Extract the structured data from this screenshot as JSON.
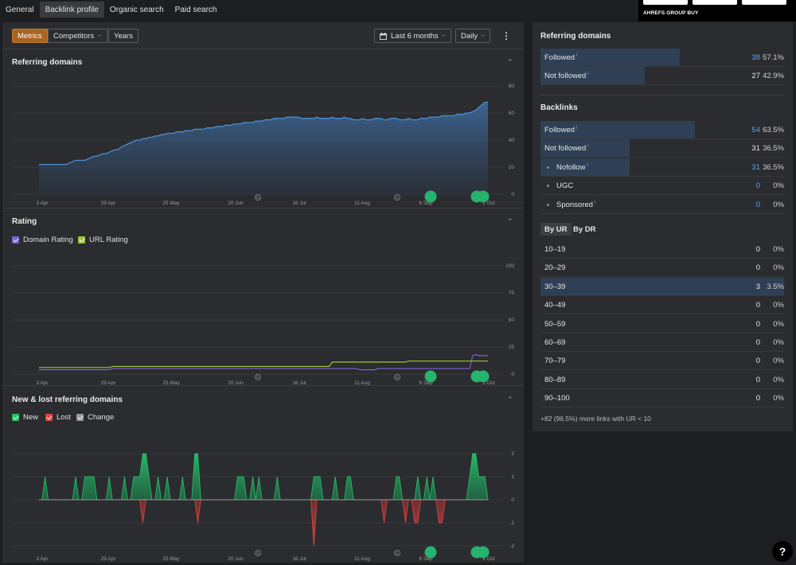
{
  "tabs": [
    {
      "label": "General"
    },
    {
      "label": "Backlink profile"
    },
    {
      "label": "Organic search"
    },
    {
      "label": "Paid search"
    }
  ],
  "promo": {
    "brand": "AHREFS GROUP BUY"
  },
  "toolbar": {
    "metrics": "Metrics",
    "competitors": "Competitors",
    "years": "Years",
    "range": "Last 6 months",
    "interval": "Daily"
  },
  "sections": {
    "referring_domains": "Referring domains",
    "rating": "Rating",
    "new_lost": "New & lost referring domains"
  },
  "rating_legend": {
    "domain": "Domain Rating",
    "url": "URL Rating"
  },
  "newlost_legend": {
    "new": "New",
    "lost": "Lost",
    "change": "Change"
  },
  "colors": {
    "accent": "#a86421",
    "line_blue": "#4b8fd6",
    "domain_rating": "#7e62d1",
    "url_rating": "#9cc33d",
    "new": "#26c26b",
    "lost": "#e04444",
    "change": "#9a9a9a",
    "marker": "#26b36c"
  },
  "x_ticks": [
    "3 Apr",
    "29 Apr",
    "25 May",
    "20 Jun",
    "16 Jul",
    "11 Aug",
    "6 Sep",
    "2 Oct"
  ],
  "chart_data": [
    {
      "type": "area",
      "title": "Referring domains",
      "yticks": [
        "80",
        "60",
        "40",
        "20",
        "0"
      ],
      "ylim": [
        0,
        80
      ],
      "grid": true,
      "series": [
        {
          "values": [
            22,
            22,
            22,
            22,
            22,
            22,
            22,
            22,
            22,
            22,
            23,
            24,
            25,
            25,
            25,
            25,
            26,
            27,
            28,
            28,
            29,
            30,
            30,
            31,
            32,
            33,
            33,
            35,
            36,
            37,
            38,
            39,
            40,
            40,
            41,
            41,
            42,
            42,
            43,
            43,
            44,
            44,
            45,
            45,
            45,
            46,
            46,
            46,
            47,
            47,
            47,
            48,
            48,
            48,
            48,
            49,
            49,
            49,
            50,
            50,
            50,
            51,
            51,
            51,
            52,
            52,
            52,
            53,
            53,
            53,
            53,
            54,
            54,
            54,
            55,
            55,
            55,
            56,
            56,
            56,
            56,
            57,
            57,
            57,
            57,
            57,
            56,
            56,
            56,
            56,
            56,
            57,
            56,
            56,
            56,
            56,
            57,
            56,
            56,
            56,
            57,
            56,
            56,
            55,
            55,
            55,
            56,
            55,
            55,
            55,
            56,
            56,
            56,
            55,
            55,
            56,
            56,
            56,
            55,
            55,
            55,
            56,
            55,
            55,
            55,
            56,
            56,
            56,
            57,
            57,
            57,
            57,
            58,
            58,
            58,
            58,
            58,
            59,
            59,
            59,
            60,
            60,
            61,
            62,
            64,
            66,
            68,
            68
          ]
        }
      ]
    },
    {
      "type": "line",
      "title": "Rating",
      "yticks": [
        "100",
        "75",
        "50",
        "25",
        "0"
      ],
      "ylim": [
        0,
        100
      ],
      "grid": true,
      "series": [
        {
          "name": "Domain Rating",
          "values": [
            4,
            4,
            4,
            4,
            4,
            4,
            4,
            4,
            4,
            4,
            4,
            4,
            4,
            4,
            4,
            4,
            4,
            4,
            4,
            4,
            4,
            4,
            4,
            4,
            5,
            5,
            5,
            5,
            5,
            5,
            5,
            5,
            5,
            5,
            5,
            5,
            5,
            5,
            5,
            5,
            5,
            5,
            5,
            5,
            5,
            5,
            5,
            5,
            5,
            5,
            5,
            5,
            5,
            5,
            5,
            5,
            5,
            5,
            5,
            5,
            5,
            5,
            5,
            5,
            5,
            5,
            5,
            5,
            5,
            5,
            5,
            5,
            5,
            5,
            5,
            5,
            5,
            5,
            5,
            5,
            5,
            5,
            5,
            5,
            5,
            5,
            5,
            5,
            5,
            5,
            5,
            5,
            5,
            5,
            5,
            5,
            5,
            5,
            5,
            5,
            5,
            5,
            5,
            5,
            5,
            4,
            4,
            4,
            4,
            4,
            4,
            5,
            5,
            5,
            5,
            5,
            5,
            5,
            5,
            5,
            5,
            5,
            5,
            5,
            5,
            5,
            5,
            5,
            5,
            5,
            5,
            5,
            5,
            5,
            5,
            5,
            5,
            5,
            5,
            5,
            5,
            5,
            17,
            18,
            17,
            17,
            17,
            17
          ]
        },
        {
          "name": "URL Rating",
          "values": [
            6,
            6,
            6,
            6,
            6,
            6,
            6,
            6,
            6,
            6,
            6,
            6,
            6,
            6,
            6,
            6,
            6,
            6,
            6,
            6,
            6,
            6,
            6,
            6,
            7,
            7,
            7,
            7,
            7,
            7,
            7,
            7,
            7,
            7,
            7,
            7,
            7,
            7,
            7,
            7,
            7,
            7,
            7,
            7,
            7,
            7,
            7,
            7,
            7,
            7,
            7,
            7,
            7,
            7,
            7,
            7,
            7,
            7,
            7,
            7,
            7,
            7,
            7,
            7,
            7,
            7,
            7,
            7,
            7,
            7,
            7,
            7,
            7,
            7,
            7,
            7,
            7,
            7,
            7,
            7,
            7,
            7,
            7,
            7,
            7,
            7,
            7,
            7,
            7,
            7,
            7,
            7,
            7,
            7,
            7,
            7,
            11,
            11,
            11,
            11,
            11,
            11,
            11,
            11,
            11,
            11,
            11,
            11,
            11,
            11,
            11,
            11,
            11,
            11,
            11,
            11,
            11,
            11,
            11,
            11,
            11,
            12,
            12,
            12,
            12,
            12,
            12,
            12,
            12,
            12,
            12,
            12,
            12,
            12,
            12,
            12,
            12,
            12,
            12,
            12,
            12,
            12,
            12,
            12,
            12,
            12,
            12,
            12
          ]
        }
      ]
    },
    {
      "type": "line",
      "title": "New & lost referring domains",
      "yticks": [
        "2",
        "1",
        "0",
        "-1",
        "-2"
      ],
      "ylim": [
        -2,
        2
      ],
      "grid": true,
      "series": [
        {
          "name": "New",
          "values": [
            0,
            0,
            1,
            0,
            0,
            0,
            0,
            0,
            0,
            0,
            0,
            0,
            1,
            0,
            0,
            1,
            1,
            1,
            1,
            0,
            0,
            0,
            0,
            1,
            0,
            0,
            0,
            0,
            1,
            0,
            0,
            1,
            1,
            1,
            2,
            2,
            1,
            0,
            0,
            1,
            0,
            0,
            1,
            0,
            0,
            0,
            0,
            1,
            0,
            0,
            0,
            2,
            2,
            0,
            0,
            0,
            0,
            0,
            0,
            0,
            0,
            0,
            0,
            0,
            0,
            1,
            1,
            1,
            0,
            0,
            1,
            0,
            1,
            0,
            0,
            0,
            0,
            0,
            1,
            0,
            0,
            0,
            0,
            0,
            0,
            0,
            0,
            0,
            0,
            0,
            1,
            1,
            1,
            0,
            0,
            0,
            0,
            1,
            0,
            0,
            0,
            1,
            1,
            0,
            0,
            0,
            0,
            0,
            0,
            0,
            0,
            0,
            0,
            0,
            0,
            0,
            0,
            1,
            1,
            0,
            0,
            0,
            0,
            0,
            1,
            0,
            0,
            1,
            0,
            1,
            0,
            0,
            0,
            0,
            0,
            0,
            0,
            0,
            0,
            0,
            0,
            1,
            2,
            2,
            1,
            1,
            1,
            0
          ]
        },
        {
          "name": "Lost",
          "values": [
            0,
            0,
            0,
            0,
            0,
            0,
            0,
            0,
            0,
            0,
            0,
            0,
            0,
            0,
            0,
            0,
            0,
            0,
            0,
            0,
            0,
            0,
            0,
            0,
            0,
            0,
            0,
            0,
            0,
            0,
            0,
            0,
            0,
            0,
            -1,
            0,
            0,
            0,
            0,
            0,
            0,
            0,
            0,
            0,
            0,
            0,
            0,
            0,
            0,
            0,
            0,
            0,
            -1,
            0,
            0,
            0,
            0,
            0,
            0,
            0,
            0,
            0,
            0,
            0,
            0,
            0,
            0,
            0,
            0,
            0,
            0,
            0,
            0,
            0,
            0,
            0,
            0,
            0,
            0,
            0,
            0,
            0,
            0,
            0,
            0,
            0,
            0,
            0,
            0,
            0,
            -2,
            0,
            0,
            0,
            0,
            0,
            0,
            0,
            0,
            0,
            0,
            0,
            0,
            0,
            0,
            0,
            0,
            0,
            0,
            0,
            0,
            0,
            0,
            -1,
            0,
            0,
            0,
            0,
            0,
            0,
            -1,
            0,
            0,
            -1,
            -1,
            0,
            0,
            0,
            0,
            0,
            0,
            -1,
            -1,
            0,
            0,
            0,
            0,
            0,
            0,
            0,
            0,
            0,
            0,
            0,
            0,
            0,
            0,
            0
          ]
        }
      ]
    }
  ],
  "right": {
    "referring_domains_title": "Referring domains",
    "rd_rows": [
      {
        "label": "Followed",
        "value": "38",
        "pct": "57.1%",
        "link": true,
        "bar": 57.1
      },
      {
        "label": "Not followed",
        "value": "27",
        "pct": "42.9%",
        "link": false,
        "bar": 42.9
      }
    ],
    "backlinks_title": "Backlinks",
    "bl_rows": [
      {
        "label": "Followed",
        "value": "54",
        "pct": "63.5%",
        "link": true,
        "bar": 63.5,
        "sub": false,
        "info": true
      },
      {
        "label": "Not followed",
        "value": "31",
        "pct": "36.5%",
        "link": false,
        "bar": 36.5,
        "sub": false,
        "info": true
      },
      {
        "label": "Nofollow",
        "value": "31",
        "pct": "36.5%",
        "link": true,
        "bar": 36.5,
        "sub": true,
        "info": true
      },
      {
        "label": "UGC",
        "value": "0",
        "pct": "0%",
        "link": true,
        "bar": 0,
        "sub": true,
        "info": false
      },
      {
        "label": "Sponsored",
        "value": "0",
        "pct": "0%",
        "link": true,
        "bar": 0,
        "sub": true,
        "info": true
      }
    ],
    "by_ur": "By UR",
    "by_dr": "By DR",
    "ur_rows": [
      {
        "label": "10–19",
        "value": "0",
        "pct": "0%",
        "bar": 0
      },
      {
        "label": "20–29",
        "value": "0",
        "pct": "0%",
        "bar": 0
      },
      {
        "label": "30–39",
        "value": "3",
        "pct": "3.5%",
        "bar": 100
      },
      {
        "label": "40–49",
        "value": "0",
        "pct": "0%",
        "bar": 0
      },
      {
        "label": "50–59",
        "value": "0",
        "pct": "0%",
        "bar": 0
      },
      {
        "label": "60–69",
        "value": "0",
        "pct": "0%",
        "bar": 0
      },
      {
        "label": "70–79",
        "value": "0",
        "pct": "0%",
        "bar": 0
      },
      {
        "label": "80–89",
        "value": "0",
        "pct": "0%",
        "bar": 0
      },
      {
        "label": "90–100",
        "value": "0",
        "pct": "0%",
        "bar": 0
      }
    ],
    "footnote": "+82 (96.5%) more links with UR < 10"
  },
  "help": "?"
}
